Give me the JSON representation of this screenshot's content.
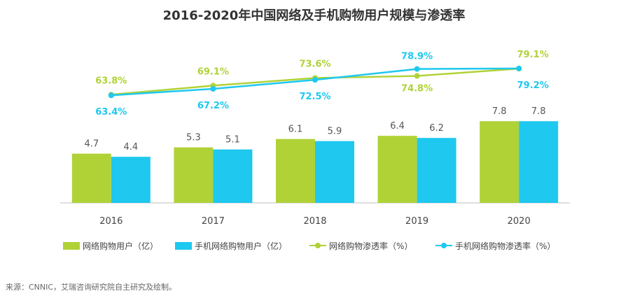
{
  "title": "2016-2020年中国网络及手机购物用户规模与渗透率",
  "source": "来源：CNNIC，艾瑞咨询研究院自主研究及绘制。",
  "colors": {
    "green": "#b0d237",
    "blue": "#1ec8ef",
    "axis": "#bfbfbf",
    "text": "#444444"
  },
  "chart_data": {
    "type": "bar",
    "title": "2016-2020年中国网络及手机购物用户规模与渗透率",
    "categories": [
      "2016",
      "2017",
      "2018",
      "2019",
      "2020"
    ],
    "ylim": [
      0,
      9
    ],
    "series": [
      {
        "name": "网络购物用户（亿）",
        "kind": "bar",
        "color": "#b0d237",
        "values": [
          4.7,
          5.3,
          6.1,
          6.4,
          7.8
        ]
      },
      {
        "name": "手机网络购物用户（亿）",
        "kind": "bar",
        "color": "#1ec8ef",
        "values": [
          4.4,
          5.1,
          5.9,
          6.2,
          7.8
        ]
      },
      {
        "name": "网络购物渗透率（%）",
        "kind": "line",
        "color": "#b0d237",
        "values": [
          63.8,
          69.1,
          73.6,
          74.8,
          79.1
        ]
      },
      {
        "name": "手机网络购物渗透率（%）",
        "kind": "line",
        "color": "#1ec8ef",
        "values": [
          63.4,
          67.2,
          72.5,
          78.9,
          79.2
        ]
      }
    ],
    "bar_value_labels": [
      [
        "4.7",
        "5.3",
        "6.1",
        "6.4",
        "7.8"
      ],
      [
        "4.4",
        "5.1",
        "5.9",
        "6.2",
        "7.8"
      ]
    ],
    "rate_labels": [
      [
        "63.8%",
        "69.1%",
        "73.6%",
        "74.8%",
        "79.1%"
      ],
      [
        "63.4%",
        "67.2%",
        "72.5%",
        "78.9%",
        "79.2%"
      ]
    ],
    "legend": [
      "网络购物用户（亿）",
      "手机网络购物用户（亿）",
      "网络购物渗透率（%）",
      "手机网络购物渗透率（%）"
    ],
    "legend_position": "bottom"
  }
}
